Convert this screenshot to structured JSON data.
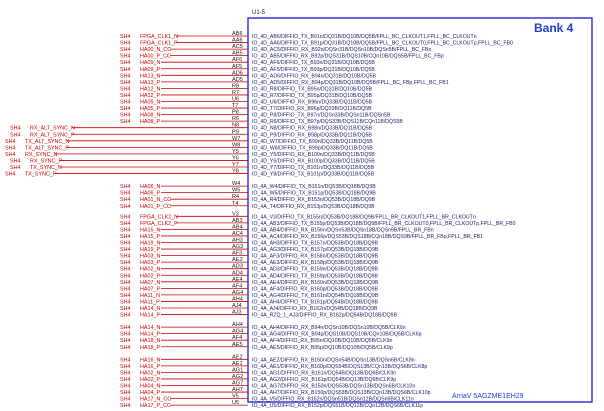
{
  "component": {
    "ref": "U1-5",
    "bank": "Bank 4",
    "part": "ArriaV 5AGZME1EH29"
  },
  "colors": {
    "net": "#cc0000",
    "box": "#2a2ad0",
    "text": "#1a1a66"
  },
  "left_nets": [
    {
      "sheet": "SH4",
      "net": "FPGA_CLK1_N",
      "pin": "AB6",
      "name": "IO_4D_AB6/DIFFIO_TX_B91n/DQ31B/DQ10B/DQ5B/FPLL_BC_CLKOUT1,FPLL_BC_CLKOUTn"
    },
    {
      "sheet": "SH4",
      "net": "FPGA_CLK1_P",
      "pin": "AA6",
      "name": "IO_4D_AA6/DIFFIO_TX_B91p/DQ31B/DQ10B/DQ5B/FPLL_BC_CLKOUT0,FPLL_BC_CLKOUTp,FPLL_BC_FB0"
    },
    {
      "sheet": "SH4",
      "net": "HA00_N_CC",
      "pin": "AC5",
      "name": "IO_4D_AC5/DIFFIO_RX_B92n/DQSn31B/DQSn10B/DQSn5B/FPLL_BC_FBn"
    },
    {
      "sheet": "SH4",
      "net": "HA00_P_CC",
      "pin": "AB5",
      "name": "IO_4D_AB5/DIFFIO_RX_B92p/DQS31B/DQS10B/CQn10B/DQS5B/FPLL_BC_FBp"
    },
    {
      "sheet": "SH4",
      "net": "HA09_N",
      "pin": "AF6",
      "name": "IO_4D_AF6/DIFFIO_TX_B93n/DQ31B/DQ10B/DQ5B"
    },
    {
      "sheet": "SH4",
      "net": "HA09_P",
      "pin": "AF5",
      "name": "IO_4D_AF5/DIFFIO_TX_B93p/DQ31B/DQ10B/DQ5B"
    },
    {
      "sheet": "SH4",
      "net": "HA13_N",
      "pin": "AD6",
      "name": "IO_4D_AD6/DIFFIO_RX_B94n/DQ31B/DQ10B/DQ5B"
    },
    {
      "sheet": "SH4",
      "net": "HA13_P",
      "pin": "AD5",
      "name": "IO_4D_AD5/DIFFIO_RX_B94p/DQ31B/DQ10B/DQ5B/FPLL_BC_FBp,FPLL_BC_FB1"
    },
    {
      "sheet": "SH4",
      "net": "HA12_N",
      "pin": "R8",
      "name": "IO_4D_R8/DIFFIO_TX_B95n/DQ31B/DQ10B/DQ5B"
    },
    {
      "sheet": "SH4",
      "net": "HA12_P",
      "pin": "R7",
      "name": "IO_4D_R7/DIFFIO_TX_B95p/DQ31B/DQ10B/DQ5B"
    },
    {
      "sheet": "SH4",
      "net": "HA05_N",
      "pin": "U6",
      "name": "IO_4D_U6/DIFFIO_RX_B96n/DQ33B/DQ11B/DQ5B"
    },
    {
      "sheet": "SH4",
      "net": "HA05_P",
      "pin": "T7",
      "name": "IO_4D_T7/DIFFIO_RX_B96p/DQ33B/DQ11B/DQ5B"
    },
    {
      "sheet": "SH4",
      "net": "HA08_N",
      "pin": "P8",
      "name": "IO_4D_P8/DIFFIO_TX_B97n/DQSn33B/DQSn11B/DQSn5B"
    },
    {
      "sheet": "SH4",
      "net": "HA08_P",
      "pin": "R6",
      "name": "IO_4D_R6/DIFFIO_TX_B97p/DQS33B/DQS11B/CQn11B/DQS5B"
    },
    {
      "sheet": "SH4",
      "net": "RX_ALT_SYNC_N",
      "pin": "N8",
      "name": "IO_4D_N8/DIFFIO_RX_B98n/DQ33B/DQ11B/DQ5B"
    },
    {
      "sheet": "SH4",
      "net": "RX_ALT_SYNC_P",
      "pin": "P9",
      "name": "IO_4D_P9/DIFFIO_RX_B98p/DQ33B/DQ11B/DQ5B"
    },
    {
      "sheet": "SH4",
      "net": "TX_ALT_SYNC_N",
      "pin": "W7",
      "name": "IO_4D_W7/DIFFIO_TX_B99n/DQ33B/DQ11B/DQ5B"
    },
    {
      "sheet": "SH4",
      "net": "TX_ALT_SYNC_P",
      "pin": "W8",
      "name": "IO_4D_W8/DIFFIO_TX_B99p/DQ33B/DQ11B/DQ5B"
    },
    {
      "sheet": "SH4",
      "net": "RX_SYNC_N",
      "pin": "Y5",
      "name": "IO_4D_Y5/DIFFIO_RX_B100n/DQ33B/DQ11B/DQ5B"
    },
    {
      "sheet": "SH4",
      "net": "RX_SYNC_P",
      "pin": "Y6",
      "name": "IO_4D_Y6/DIFFIO_RX_B100p/DQ33B/DQ11B/DQ5B"
    },
    {
      "sheet": "SH4",
      "net": "TX_SYNC_N",
      "pin": "Y7",
      "name": "IO_4D_Y7/DIFFIO_TX_B101n/DQ33B/DQ11B/DQ5B"
    },
    {
      "sheet": "SH4",
      "net": "TX_SYNC_P",
      "pin": "Y8",
      "name": "IO_4D_Y8/DIFFIO_TX_B101p/DQ33B/DQ11B/DQ5B"
    },
    {
      "sheet": "SH4",
      "net": "HA06_N",
      "pin": "W4",
      "name": "IO_4A_W4/DIFFIO_TX_B151n/DQ53B/DQ18B/DQ9B"
    },
    {
      "sheet": "SH4",
      "net": "HA06_P",
      "pin": "W5",
      "name": "IO_4A_W5/DIFFIO_TX_B151p/DQ53B/DQ18B/DQ9B"
    },
    {
      "sheet": "SH4",
      "net": "HA01_N_CC",
      "pin": "R4",
      "name": "IO_4A_R4/DIFFIO_RX_B153n/DQ53B/DQ18B/DQ9B"
    },
    {
      "sheet": "SH4",
      "net": "HA01_P_CC",
      "pin": "T4",
      "name": "IO_4A_T4/DIFFIO_RX_B153p/DQ53B/DQ18B/DQ9B"
    },
    {
      "sheet": "SH4",
      "net": "FPGA_CLK2_N",
      "pin": "V3",
      "name": "IO_4A_V3/DIFFIO_TX_B155n/DQ53B/DQ18B/DQ9B/FPLL_BR_CLKOUT1,FPLL_BR_CLKOUTn"
    },
    {
      "sheet": "SH4",
      "net": "FPGA_CLK2_P",
      "pin": "AB3",
      "name": "IO_4A_AB3/DIFFIO_TX_B155p/DQ53B/DQ18B/DQ9B/FPLL_BR_CLKOUT0,FPLL_BR_CLKOUTp,FPLL_BR_FB0"
    },
    {
      "sheet": "SH4",
      "net": "HA15_N",
      "pin": "AB4",
      "name": "IO_4A_AB4/DIFFIO_RX_B156n/DQSn53B/DQSn18B/DQSn9B/FPLL_BR_FBn"
    },
    {
      "sheet": "SH4",
      "net": "HA15_P",
      "pin": "AC4",
      "name": "IO_4A_AC4/DIFFIO_RX_B156p/DQS53B/DQS18B/CQn18B/DQS9B/FPLL_BR_FBp,FPLL_BR_FB1"
    },
    {
      "sheet": "SH4",
      "net": "HA19_N",
      "pin": "AH3",
      "name": "IO_4A_AH3/DIFFIO_TX_B157n/DQ53B/DQ18B/DQ9B"
    },
    {
      "sheet": "SH4",
      "net": "HA19_P",
      "pin": "AG3",
      "name": "IO_4A_AG3/DIFFIO_TX_B157p/DQ53B/DQ18B/DQ9B"
    },
    {
      "sheet": "SH4",
      "net": "HA03_N",
      "pin": "AF3",
      "name": "IO_4A_AF3/DIFFIO_RX_B158n/DQ53B/DQ18B/DQ9B"
    },
    {
      "sheet": "SH4",
      "net": "HA03_P",
      "pin": "AE3",
      "name": "IO_4A_AE3/DIFFIO_RX_B158p/DQ53B/DQ18B/DQ9B"
    },
    {
      "sheet": "SH4",
      "net": "HA02_N",
      "pin": "AD3",
      "name": "IO_4A_AD3/DIFFIO_TX_B159n/DQ53B/DQ18B/DQ9B"
    },
    {
      "sheet": "SH4",
      "net": "HA02_P",
      "pin": "AD4",
      "name": "IO_4A_AD4/DIFFIO_TX_B159p/DQ53B/DQ18B/DQ9B"
    },
    {
      "sheet": "SH4",
      "net": "HA07_N",
      "pin": "AE4",
      "name": "IO_4A_AE4/DIFFIO_RX_B160n/DQ53B/DQ18B/DQ9B"
    },
    {
      "sheet": "SH4",
      "net": "HA07_P",
      "pin": "AF4",
      "name": "IO_4A_AF4/DIFFIO_RX_B160p/DQ53B/DQ18B/DQ9B"
    },
    {
      "sheet": "SH4",
      "net": "HA11_N",
      "pin": "AG4",
      "name": "IO_4A_AG4/DIFFIO_TX_B161n/DQ54B/DQ18B/DQ9B"
    },
    {
      "sheet": "SH4",
      "net": "HA11_P",
      "pin": "AH4",
      "name": "IO_4A_AH4/DIFFIO_TX_B161p/DQ54B/DQ18B/DQ9B"
    },
    {
      "sheet": "SH4",
      "net": "HA14_N",
      "pin": "AJ4",
      "name": "IO_4A_AJ4/DIFFIO_RX_B162n/DQ54B/DQ18B/DQ9B"
    },
    {
      "sheet": "SH4",
      "net": "HA14_P",
      "pin": "AJ3",
      "name": "IO_4A_RZQ_1_AJ3/DIFFIO_RX_B162p/DQ54B/DQ18B/DQ9B"
    },
    {
      "sheet": "SH4",
      "net": "HA14_N",
      "pin": "AH4",
      "name": "IO_4A_AH4/DIFFIO_RX_B94n/DQSn10B/DQSn10B/DQ5B/CLK6n"
    },
    {
      "sheet": "SH4",
      "net": "HA14_P",
      "pin": "AG4",
      "name": "IO_4A_AG4/DIFFIO_RX_B94p/DQS10B/DQS10B/CQn10B/DQ5B/CLK6p"
    },
    {
      "sheet": "SH4",
      "net": "HA18_N",
      "pin": "AF4",
      "name": "IO_4A_AF4/DIFFIO_RX_B95n/DQ10B/DQ10B/DQ5B/CLK9n"
    },
    {
      "sheet": "SH4",
      "net": "HA18_P",
      "pin": "AE5",
      "name": "IO_4A_AE5/DIFFIO_RX_B95p/DQ10B/DQ10B/DQ5B/CLK9p"
    },
    {
      "sheet": "SH4",
      "net": "HA16_N",
      "pin": "AE2",
      "name": "IO_4A_AE2/DIFFIO_RX_B160n/DQSn54B/DQSn13B/DQSn6B/CLK8n"
    },
    {
      "sheet": "SH4",
      "net": "HA16_P",
      "pin": "AE1",
      "name": "IO_4A_AE1/DIFFIO_RX_B160p/DQS54B/DQS13B/CQn13B/DQS6B/CLK8p"
    },
    {
      "sheet": "SH4",
      "net": "HA02_N",
      "pin": "AG1",
      "name": "IO_4A_AG1/DIFFIO_RX_B161n/DQ54B/DQ13B/DQ6B/CLK9n"
    },
    {
      "sheet": "SH4",
      "net": "HA02_P",
      "pin": "AG2",
      "name": "IO_4A_AG2/DIFFIO_RX_B161p/DQ54B/DQ13B/DQ6B/CLK9p"
    },
    {
      "sheet": "SH4",
      "net": "HA04_N",
      "pin": "AG7",
      "name": "IO_4A_AG7/DIFFIO_RX_B150n/DQS53B/DQSn13B/DQSn6B/CLK10n"
    },
    {
      "sheet": "SH4",
      "net": "HA04_P",
      "pin": "AH7",
      "name": "IO_4A_AH7/DIFFIO_RX_B150p/DQS53B/DQS13B/CQn13B/DQS6B/CLK10p"
    },
    {
      "sheet": "SH4",
      "net": "HA17_N_CC",
      "pin": "V5",
      "name": "IO_4A_V5/DIFFIO_RX_B152n/DQSn51B/DQSn12B/DQSn6B/CLK11n"
    },
    {
      "sheet": "SH4",
      "net": "HA17_P_CC",
      "pin": "U5",
      "name": "IO_4A_U5/DIFFIO_RX_B152p/DQS51B/DQ12B/CQn12B/DQS6B/CLK11p"
    }
  ]
}
